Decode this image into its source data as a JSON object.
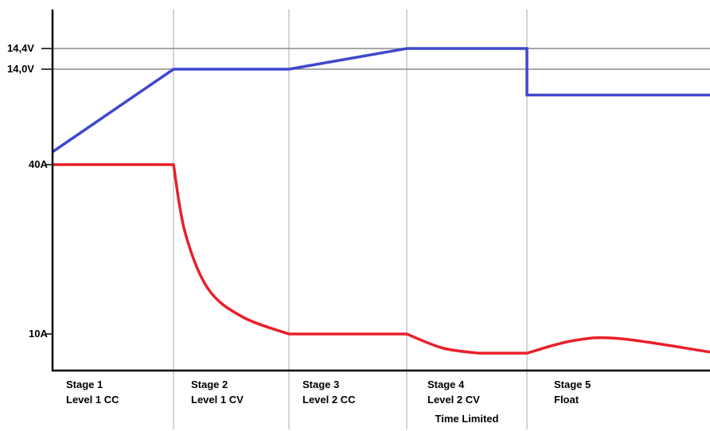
{
  "chart_data": {
    "type": "line",
    "title": "",
    "xlabel": "",
    "ylabel": "",
    "voltage_levels": [
      {
        "label": "14,4V",
        "value": 14.4
      },
      {
        "label": "14,0V",
        "value": 14.0
      }
    ],
    "current_levels": [
      {
        "label": "40A",
        "value": 40
      },
      {
        "label": "10A",
        "value": 10
      }
    ],
    "stages": [
      {
        "name": "Stage 1",
        "mode": "Level 1 CC",
        "note": ""
      },
      {
        "name": "Stage 2",
        "mode": "Level 1 CV",
        "note": ""
      },
      {
        "name": "Stage 3",
        "mode": "Level 2 CC",
        "note": ""
      },
      {
        "name": "Stage 4",
        "mode": "Level 2 CV",
        "note": "Time Limited"
      },
      {
        "name": "Stage 5",
        "mode": "Float",
        "note": ""
      }
    ],
    "series": [
      {
        "unit": "V",
        "color": "#3f48cc",
        "points": [
          [
            0,
            12.4
          ],
          [
            1,
            14.0
          ],
          [
            2,
            14.0
          ],
          [
            3,
            14.4
          ],
          [
            4,
            14.4
          ],
          [
            4,
            13.5
          ],
          [
            5,
            13.5
          ]
        ]
      },
      {
        "unit": "A",
        "color": "#e8202a",
        "points": [
          [
            0,
            40
          ],
          [
            1,
            40
          ],
          [
            1.1,
            28
          ],
          [
            1.3,
            18
          ],
          [
            1.6,
            13
          ],
          [
            2,
            10
          ],
          [
            3,
            10
          ],
          [
            3.3,
            7.5
          ],
          [
            3.6,
            6.6
          ],
          [
            4,
            6.6
          ],
          [
            4.25,
            8.8
          ],
          [
            4.5,
            9.2
          ],
          [
            5,
            6.8
          ]
        ]
      }
    ]
  }
}
